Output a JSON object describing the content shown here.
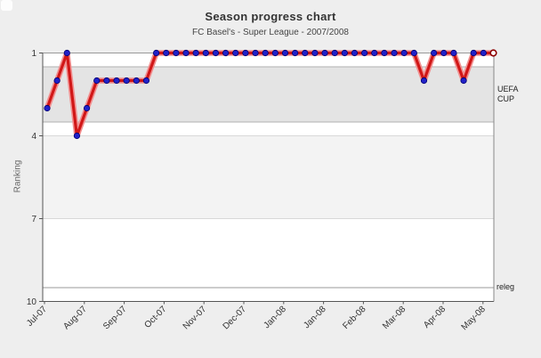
{
  "page": {
    "background": "#eeeeee"
  },
  "chart_data": {
    "type": "line",
    "title": "Season progress chart",
    "subtitle": "FC Basel's - Super League - 2007/2008",
    "ylabel": "Ranking",
    "x_tick_labels": [
      "Jul-07",
      "Aug-07",
      "Sep-07",
      "Oct-07",
      "Nov-07",
      "Dec-07",
      "Jan-08",
      "Jan-08",
      "Feb-08",
      "Mar-08",
      "Apr-08",
      "May-08"
    ],
    "y_ticks": [
      1,
      4,
      7,
      10
    ],
    "ylim": [
      1,
      10
    ],
    "y_axis_inverted": true,
    "grid": "bands",
    "legend_position": "none",
    "rankings": [
      3,
      2,
      1,
      4,
      3,
      2,
      2,
      2,
      2,
      2,
      2,
      1,
      1,
      1,
      1,
      1,
      1,
      1,
      1,
      1,
      1,
      1,
      1,
      1,
      1,
      1,
      1,
      1,
      1,
      1,
      1,
      1,
      1,
      1,
      1,
      1,
      1,
      1,
      2,
      1,
      1,
      1,
      2,
      1,
      1,
      1
    ],
    "final_point_style": "open-ring",
    "zones": [
      {
        "label": "UEFA\nCUP",
        "from_rank": 1.5,
        "to_rank": 3.5,
        "band_color": "#e4e4e4"
      },
      {
        "label": "releg",
        "at_rank": 9.5
      }
    ],
    "colors": {
      "line": "#d11717",
      "line_halo": "#f29090",
      "marker_fill": "#2121c8",
      "marker_stroke": "#000070",
      "final_marker_stroke": "#8b0000",
      "uefa_band": "#e4e4e4",
      "alt_band": "#f3f3f3",
      "plot_background": "#ffffff",
      "axis": "#555555",
      "grid_strong": "#999999",
      "grid_mid": "#b0b0b0",
      "grid_soft": "#d8d8d8",
      "tick_text": "#333333"
    }
  }
}
